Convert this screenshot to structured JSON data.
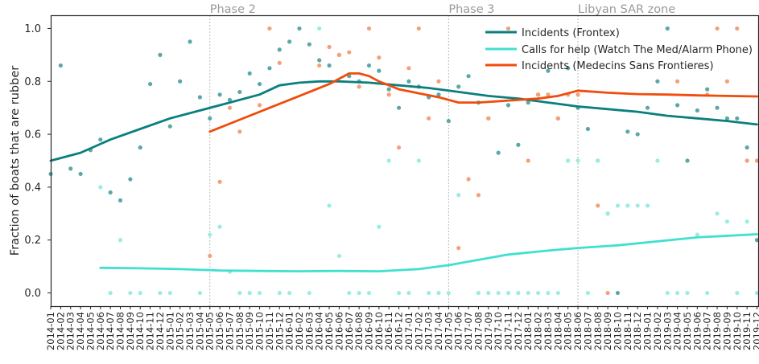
{
  "chart_data": {
    "type": "scatter",
    "title": "",
    "xlabel": "",
    "ylabel": "Fraction of boats that are rubber",
    "ylim": [
      -0.05,
      1.05
    ],
    "yticks": [
      "0.0",
      "0.2",
      "0.4",
      "0.6",
      "0.8",
      "1.0"
    ],
    "grid": false,
    "legend_position": "top-right",
    "categories": [
      "2014-01",
      "2014-02",
      "2014-03",
      "2014-04",
      "2014-05",
      "2014-06",
      "2014-07",
      "2014-08",
      "2014-09",
      "2014-10",
      "2014-11",
      "2014-12",
      "2015-01",
      "2015-02",
      "2015-03",
      "2015-04",
      "2015-05",
      "2015-06",
      "2015-07",
      "2015-08",
      "2015-09",
      "2015-10",
      "2015-11",
      "2015-12",
      "2016-01",
      "2016-02",
      "2016-03",
      "2016-04",
      "2016-05",
      "2016-06",
      "2016-07",
      "2016-08",
      "2016-09",
      "2016-10",
      "2016-11",
      "2016-12",
      "2017-01",
      "2017-02",
      "2017-03",
      "2017-04",
      "2017-05",
      "2017-06",
      "2017-07",
      "2017-08",
      "2017-09",
      "2017-10",
      "2017-11",
      "2017-12",
      "2018-01",
      "2018-02",
      "2018-03",
      "2018-04",
      "2018-05",
      "2018-06",
      "2018-07",
      "2018-08",
      "2018-09",
      "2018-10",
      "2018-11",
      "2018-12",
      "2019-01",
      "2019-02",
      "2019-03",
      "2019-04",
      "2019-05",
      "2019-06",
      "2019-07",
      "2019-08",
      "2019-09",
      "2019-10",
      "2019-11",
      "2019-12"
    ],
    "xtick_labels": [
      "2014-01",
      "2014-02",
      "2014-03",
      "2014-04",
      "2014-05",
      "2014-06",
      "2014-07",
      "2014-08",
      "2014-09",
      "2014-10",
      "2014-11",
      "2014-12",
      "2015-01",
      "2015-02",
      "2015-03",
      "2015-04",
      "2015-05",
      "2015-06",
      "2015-07",
      "2015-08",
      "2015-09",
      "2015-10",
      "2015-11",
      "2015-12",
      "2016-01",
      "2016-02",
      "2016-03",
      "2016-04",
      "2016-05",
      "2016-06",
      "2016-07",
      "2016-08",
      "2016-09",
      "2016-10",
      "2016-11",
      "2016-12",
      "2017-01",
      "2017-02",
      "2017-03",
      "2017-04",
      "2017-05",
      "2017-06",
      "2017-07",
      "2017-08",
      "2017-09",
      "2017-10",
      "2017-11",
      "2017-12",
      "2018-01",
      "2018-02",
      "2018-03",
      "2018-04",
      "2018-05",
      "2018-06",
      "2018-07",
      "2018-08",
      "2018-09",
      "2018-10",
      "2018-11",
      "2018-12",
      "2019-01",
      "2019-02",
      "2019-03",
      "2019-04",
      "2019-05",
      "2019-06",
      "2019-07",
      "2019-08",
      "2019-09",
      "2019-10",
      "2019-11",
      "2019-12"
    ],
    "phases": [
      {
        "label": "Phase 2",
        "x": "2015-05"
      },
      {
        "label": "Phase 3",
        "x": "2017-05"
      },
      {
        "label": "Libyan SAR zone",
        "x": "2018-06"
      }
    ],
    "series": [
      {
        "name": "Incidents (Frontex)",
        "color": "#0b7f7f",
        "point_color": "#5aa8a8",
        "trend": [
          [
            "2014-01",
            0.5
          ],
          [
            "2014-04",
            0.53
          ],
          [
            "2014-07",
            0.58
          ],
          [
            "2014-10",
            0.62
          ],
          [
            "2015-01",
            0.66
          ],
          [
            "2015-04",
            0.69
          ],
          [
            "2015-07",
            0.72
          ],
          [
            "2015-10",
            0.75
          ],
          [
            "2015-12",
            0.785
          ],
          [
            "2016-02",
            0.795
          ],
          [
            "2016-04",
            0.8
          ],
          [
            "2016-06",
            0.8
          ],
          [
            "2016-09",
            0.795
          ],
          [
            "2016-12",
            0.785
          ],
          [
            "2017-03",
            0.775
          ],
          [
            "2017-06",
            0.76
          ],
          [
            "2017-09",
            0.745
          ],
          [
            "2017-12",
            0.735
          ],
          [
            "2018-03",
            0.72
          ],
          [
            "2018-06",
            0.705
          ],
          [
            "2018-09",
            0.695
          ],
          [
            "2018-12",
            0.685
          ],
          [
            "2019-03",
            0.67
          ],
          [
            "2019-06",
            0.66
          ],
          [
            "2019-09",
            0.65
          ],
          [
            "2019-12",
            0.637
          ]
        ],
        "points": [
          [
            "2014-01",
            0.45
          ],
          [
            "2014-02",
            0.86
          ],
          [
            "2014-03",
            0.47
          ],
          [
            "2014-04",
            0.45
          ],
          [
            "2014-05",
            0.54
          ],
          [
            "2014-06",
            0.58
          ],
          [
            "2014-07",
            0.38
          ],
          [
            "2014-08",
            0.35
          ],
          [
            "2014-09",
            0.43
          ],
          [
            "2014-10",
            0.55
          ],
          [
            "2014-11",
            0.79
          ],
          [
            "2014-12",
            0.9
          ],
          [
            "2015-01",
            0.63
          ],
          [
            "2015-02",
            0.8
          ],
          [
            "2015-03",
            0.95
          ],
          [
            "2015-04",
            0.74
          ],
          [
            "2015-05",
            0.66
          ],
          [
            "2015-06",
            0.75
          ],
          [
            "2015-07",
            0.73
          ],
          [
            "2015-08",
            0.76
          ],
          [
            "2015-09",
            0.83
          ],
          [
            "2015-10",
            0.79
          ],
          [
            "2015-11",
            0.85
          ],
          [
            "2015-12",
            0.92
          ],
          [
            "2016-01",
            0.95
          ],
          [
            "2016-02",
            1.0
          ],
          [
            "2016-03",
            0.94
          ],
          [
            "2016-04",
            0.88
          ],
          [
            "2016-05",
            0.86
          ],
          [
            "2016-06",
            0.9
          ],
          [
            "2016-07",
            0.82
          ],
          [
            "2016-08",
            0.8
          ],
          [
            "2016-09",
            0.86
          ],
          [
            "2016-10",
            0.84
          ],
          [
            "2016-11",
            0.77
          ],
          [
            "2016-12",
            0.7
          ],
          [
            "2017-01",
            0.8
          ],
          [
            "2017-02",
            0.78
          ],
          [
            "2017-03",
            0.74
          ],
          [
            "2017-04",
            0.75
          ],
          [
            "2017-05",
            0.65
          ],
          [
            "2017-06",
            0.78
          ],
          [
            "2017-07",
            0.82
          ],
          [
            "2017-08",
            0.72
          ],
          [
            "2017-09",
            0.66
          ],
          [
            "2017-10",
            0.53
          ],
          [
            "2017-11",
            0.71
          ],
          [
            "2017-12",
            0.56
          ],
          [
            "2018-01",
            0.72
          ],
          [
            "2018-02",
            0.75
          ],
          [
            "2018-03",
            0.84
          ],
          [
            "2018-04",
            0.66
          ],
          [
            "2018-05",
            0.85
          ],
          [
            "2018-06",
            0.7
          ],
          [
            "2018-07",
            0.62
          ],
          [
            "2018-08",
            0.5
          ],
          [
            "2018-09",
            0.3
          ],
          [
            "2018-10",
            0.0
          ],
          [
            "2018-11",
            0.61
          ],
          [
            "2018-12",
            0.6
          ],
          [
            "2019-01",
            0.7
          ],
          [
            "2019-02",
            0.8
          ],
          [
            "2019-03",
            1.0
          ],
          [
            "2019-04",
            0.71
          ],
          [
            "2019-05",
            0.5
          ],
          [
            "2019-06",
            0.69
          ],
          [
            "2019-07",
            0.77
          ],
          [
            "2019-08",
            0.7
          ],
          [
            "2019-09",
            0.66
          ],
          [
            "2019-10",
            0.66
          ],
          [
            "2019-11",
            0.55
          ],
          [
            "2019-12",
            0.2
          ]
        ]
      },
      {
        "name": "Calls for help (Watch The Med/Alarm Phone)",
        "color": "#40e0d0",
        "point_color": "#9aece4",
        "trend": [
          [
            "2014-06",
            0.095
          ],
          [
            "2014-10",
            0.093
          ],
          [
            "2015-02",
            0.09
          ],
          [
            "2015-06",
            0.085
          ],
          [
            "2015-10",
            0.083
          ],
          [
            "2016-02",
            0.082
          ],
          [
            "2016-06",
            0.083
          ],
          [
            "2016-10",
            0.082
          ],
          [
            "2017-02",
            0.09
          ],
          [
            "2017-05",
            0.105
          ],
          [
            "2017-08",
            0.125
          ],
          [
            "2017-11",
            0.145
          ],
          [
            "2018-03",
            0.16
          ],
          [
            "2018-06",
            0.17
          ],
          [
            "2018-10",
            0.18
          ],
          [
            "2019-02",
            0.195
          ],
          [
            "2019-06",
            0.21
          ],
          [
            "2019-12",
            0.222
          ]
        ],
        "points": [
          [
            "2014-06",
            0.4
          ],
          [
            "2014-07",
            0.0
          ],
          [
            "2014-08",
            0.2
          ],
          [
            "2014-09",
            0.0
          ],
          [
            "2014-10",
            0.0
          ],
          [
            "2014-12",
            0.0
          ],
          [
            "2015-01",
            0.0
          ],
          [
            "2015-04",
            0.0
          ],
          [
            "2015-05",
            0.22
          ],
          [
            "2015-06",
            0.25
          ],
          [
            "2015-07",
            0.08
          ],
          [
            "2015-08",
            0.0
          ],
          [
            "2015-09",
            0.0
          ],
          [
            "2015-10",
            0.0
          ],
          [
            "2015-12",
            0.0
          ],
          [
            "2016-01",
            0.0
          ],
          [
            "2016-03",
            0.0
          ],
          [
            "2016-04",
            1.0
          ],
          [
            "2016-05",
            0.33
          ],
          [
            "2016-06",
            0.14
          ],
          [
            "2016-07",
            0.0
          ],
          [
            "2016-08",
            0.0
          ],
          [
            "2016-09",
            0.0
          ],
          [
            "2016-10",
            0.25
          ],
          [
            "2016-11",
            0.5
          ],
          [
            "2016-12",
            0.0
          ],
          [
            "2017-01",
            0.0
          ],
          [
            "2017-02",
            0.5
          ],
          [
            "2017-03",
            0.0
          ],
          [
            "2017-04",
            0.0
          ],
          [
            "2017-05",
            0.0
          ],
          [
            "2017-06",
            0.37
          ],
          [
            "2017-08",
            0.0
          ],
          [
            "2017-09",
            0.0
          ],
          [
            "2017-10",
            0.0
          ],
          [
            "2017-11",
            0.0
          ],
          [
            "2017-12",
            0.0
          ],
          [
            "2018-01",
            0.0
          ],
          [
            "2018-02",
            0.0
          ],
          [
            "2018-03",
            0.0
          ],
          [
            "2018-04",
            0.0
          ],
          [
            "2018-05",
            0.5
          ],
          [
            "2018-06",
            0.5
          ],
          [
            "2018-07",
            0.0
          ],
          [
            "2018-08",
            0.5
          ],
          [
            "2018-09",
            0.3
          ],
          [
            "2018-10",
            0.33
          ],
          [
            "2018-11",
            0.33
          ],
          [
            "2018-12",
            0.33
          ],
          [
            "2019-01",
            0.33
          ],
          [
            "2019-02",
            0.5
          ],
          [
            "2019-03",
            0.0
          ],
          [
            "2019-04",
            0.0
          ],
          [
            "2019-05",
            0.0
          ],
          [
            "2019-06",
            0.22
          ],
          [
            "2019-07",
            0.0
          ],
          [
            "2019-08",
            0.3
          ],
          [
            "2019-09",
            0.27
          ],
          [
            "2019-10",
            0.0
          ],
          [
            "2019-11",
            0.27
          ],
          [
            "2019-12",
            0.0
          ]
        ]
      },
      {
        "name": "Incidents (Medecins Sans Frontieres)",
        "color": "#f04c0c",
        "point_color": "#f4a078",
        "trend": [
          [
            "2015-05",
            0.61
          ],
          [
            "2015-08",
            0.655
          ],
          [
            "2015-11",
            0.7
          ],
          [
            "2016-02",
            0.745
          ],
          [
            "2016-05",
            0.79
          ],
          [
            "2016-07",
            0.83
          ],
          [
            "2016-08",
            0.83
          ],
          [
            "2016-09",
            0.82
          ],
          [
            "2016-10",
            0.8
          ],
          [
            "2016-12",
            0.77
          ],
          [
            "2017-02",
            0.755
          ],
          [
            "2017-04",
            0.74
          ],
          [
            "2017-06",
            0.72
          ],
          [
            "2017-08",
            0.72
          ],
          [
            "2017-10",
            0.725
          ],
          [
            "2017-12",
            0.73
          ],
          [
            "2018-02",
            0.735
          ],
          [
            "2018-04",
            0.745
          ],
          [
            "2018-06",
            0.765
          ],
          [
            "2018-09",
            0.757
          ],
          [
            "2018-12",
            0.752
          ],
          [
            "2019-03",
            0.75
          ],
          [
            "2019-06",
            0.747
          ],
          [
            "2019-09",
            0.745
          ],
          [
            "2019-12",
            0.743
          ]
        ],
        "points": [
          [
            "2015-05",
            0.14
          ],
          [
            "2015-06",
            0.42
          ],
          [
            "2015-07",
            0.7
          ],
          [
            "2015-08",
            0.61
          ],
          [
            "2015-10",
            0.71
          ],
          [
            "2015-11",
            1.0
          ],
          [
            "2015-12",
            0.87
          ],
          [
            "2016-04",
            0.86
          ],
          [
            "2016-05",
            0.93
          ],
          [
            "2016-06",
            0.9
          ],
          [
            "2016-07",
            0.91
          ],
          [
            "2016-08",
            0.78
          ],
          [
            "2016-09",
            1.0
          ],
          [
            "2016-10",
            0.89
          ],
          [
            "2016-11",
            0.75
          ],
          [
            "2016-12",
            0.55
          ],
          [
            "2017-01",
            0.85
          ],
          [
            "2017-02",
            1.0
          ],
          [
            "2017-03",
            0.66
          ],
          [
            "2017-04",
            0.8
          ],
          [
            "2017-06",
            0.17
          ],
          [
            "2017-07",
            0.43
          ],
          [
            "2017-08",
            0.37
          ],
          [
            "2017-09",
            0.66
          ],
          [
            "2017-11",
            1.0
          ],
          [
            "2018-01",
            0.5
          ],
          [
            "2018-02",
            0.75
          ],
          [
            "2018-03",
            0.75
          ],
          [
            "2018-04",
            0.66
          ],
          [
            "2018-05",
            0.75
          ],
          [
            "2018-06",
            0.75
          ],
          [
            "2018-08",
            0.33
          ],
          [
            "2018-09",
            0.0
          ],
          [
            "2019-04",
            0.8
          ],
          [
            "2019-07",
            0.75
          ],
          [
            "2019-08",
            1.0
          ],
          [
            "2019-09",
            0.8
          ],
          [
            "2019-10",
            1.0
          ],
          [
            "2019-11",
            0.5
          ],
          [
            "2019-12",
            0.5
          ]
        ]
      }
    ]
  }
}
